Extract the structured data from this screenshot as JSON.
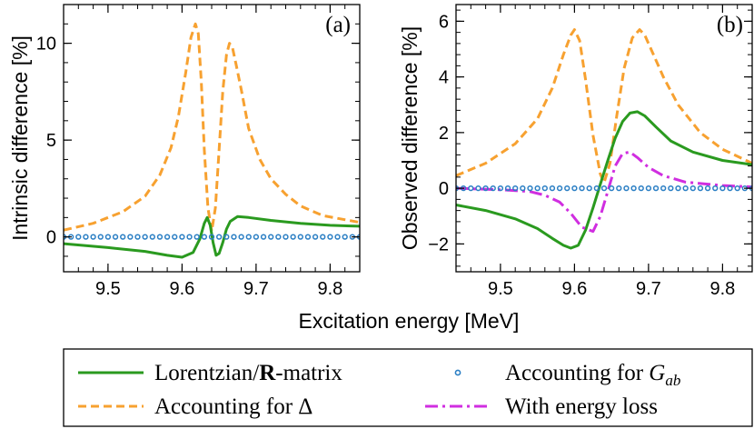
{
  "xlabel": "Excitation energy [MeV]",
  "legend": {
    "entries": [
      {
        "label": "Lorentzian/R-matrix",
        "label_prefix": "Lorentzian/",
        "label_bold": "R",
        "label_suffix": "-matrix",
        "color": "#2a9a1f",
        "style": "solid"
      },
      {
        "label": "Accounting for G_ab",
        "label_prefix": "Accounting for ",
        "label_italic": "G",
        "label_sub": "ab",
        "color": "#2b7fc4",
        "style": "circles"
      },
      {
        "label": "Accounting for Δ",
        "label_prefix": "Accounting for ",
        "label_symbol": "Δ",
        "color": "#f7a130",
        "style": "dashed"
      },
      {
        "label": "With energy loss",
        "label_prefix": "With energy loss",
        "color": "#d02ee0",
        "style": "dashdot"
      }
    ]
  },
  "chart_data": [
    {
      "type": "line",
      "panel": "(a)",
      "ylabel": "Intrinsic difference [%]",
      "xlim": [
        9.44,
        9.84
      ],
      "ylim": [
        -1.8,
        12.0
      ],
      "xticks": [
        "9.5",
        "9.6",
        "9.7",
        "9.8"
      ],
      "xtick_values": [
        9.5,
        9.6,
        9.7,
        9.8
      ],
      "yticks": [
        "0",
        "5",
        "10"
      ],
      "ytick_values": [
        0,
        5,
        10
      ],
      "series": [
        {
          "name": "Accounting for Δ",
          "color": "#f7a130",
          "style": "dashed",
          "x": [
            9.44,
            9.48,
            9.52,
            9.55,
            9.57,
            9.585,
            9.595,
            9.605,
            9.612,
            9.618,
            9.622,
            9.626,
            9.63,
            9.635,
            9.64,
            9.645,
            9.65,
            9.655,
            9.66,
            9.664,
            9.668,
            9.673,
            9.68,
            9.69,
            9.705,
            9.72,
            9.74,
            9.76,
            9.79,
            9.84
          ],
          "y": [
            0.35,
            0.7,
            1.3,
            2.1,
            3.2,
            4.6,
            6.2,
            8.5,
            10.3,
            11.0,
            10.5,
            8.0,
            4.5,
            1.5,
            0.3,
            1.5,
            4.5,
            7.5,
            9.4,
            10.0,
            9.8,
            8.9,
            7.6,
            5.6,
            4.0,
            3.0,
            2.2,
            1.6,
            1.1,
            0.75
          ]
        },
        {
          "name": "Lorentzian/R-matrix",
          "color": "#2a9a1f",
          "style": "solid",
          "x": [
            9.44,
            9.5,
            9.55,
            9.58,
            9.6,
            9.615,
            9.624,
            9.63,
            9.634,
            9.638,
            9.642,
            9.646,
            9.65,
            9.655,
            9.66,
            9.665,
            9.675,
            9.69,
            9.72,
            9.76,
            9.8,
            9.84
          ],
          "y": [
            -0.35,
            -0.55,
            -0.75,
            -0.95,
            -1.05,
            -0.8,
            -0.1,
            0.7,
            1.0,
            0.6,
            -0.3,
            -0.95,
            -0.85,
            -0.3,
            0.4,
            0.8,
            1.05,
            1.0,
            0.85,
            0.7,
            0.6,
            0.55
          ]
        },
        {
          "name": "Accounting for G_ab",
          "color": "#2b7fc4",
          "style": "circles",
          "x_start": 9.44,
          "x_step": 0.01,
          "count": 41,
          "y_const": 0.0
        }
      ]
    },
    {
      "type": "line",
      "panel": "(b)",
      "ylabel": "Observed difference [%]",
      "xlim": [
        9.44,
        9.84
      ],
      "ylim": [
        -3.0,
        6.6
      ],
      "xticks": [
        "9.5",
        "9.6",
        "9.7",
        "9.8"
      ],
      "xtick_values": [
        9.5,
        9.6,
        9.7,
        9.8
      ],
      "yticks": [
        "−2",
        "0",
        "2",
        "4",
        "6"
      ],
      "ytick_values": [
        -2,
        0,
        2,
        4,
        6
      ],
      "series": [
        {
          "name": "Accounting for Δ",
          "color": "#f7a130",
          "style": "dashed",
          "x": [
            9.44,
            9.48,
            9.52,
            9.55,
            9.57,
            9.585,
            9.595,
            9.6,
            9.607,
            9.615,
            9.625,
            9.635,
            9.64,
            9.648,
            9.657,
            9.667,
            9.678,
            9.688,
            9.695,
            9.705,
            9.72,
            9.74,
            9.77,
            9.8,
            9.84
          ],
          "y": [
            0.45,
            0.9,
            1.6,
            2.5,
            3.6,
            4.8,
            5.5,
            5.7,
            5.3,
            3.9,
            1.9,
            0.5,
            0.2,
            0.9,
            2.6,
            4.3,
            5.4,
            5.7,
            5.5,
            4.9,
            4.0,
            3.0,
            2.0,
            1.4,
            0.9
          ]
        },
        {
          "name": "Lorentzian/R-matrix",
          "color": "#2a9a1f",
          "style": "solid",
          "x": [
            9.44,
            9.48,
            9.52,
            9.55,
            9.57,
            9.585,
            9.595,
            9.605,
            9.615,
            9.625,
            9.635,
            9.645,
            9.655,
            9.665,
            9.675,
            9.685,
            9.695,
            9.71,
            9.73,
            9.76,
            9.8,
            9.84
          ],
          "y": [
            -0.6,
            -0.8,
            -1.1,
            -1.45,
            -1.8,
            -2.05,
            -2.15,
            -2.05,
            -1.5,
            -0.7,
            0.15,
            1.0,
            1.8,
            2.4,
            2.7,
            2.75,
            2.6,
            2.2,
            1.7,
            1.3,
            1.0,
            0.85
          ]
        },
        {
          "name": "With energy loss",
          "color": "#d02ee0",
          "style": "dashdot",
          "x": [
            9.44,
            9.5,
            9.54,
            9.56,
            9.58,
            9.595,
            9.61,
            9.625,
            9.635,
            9.645,
            9.655,
            9.665,
            9.675,
            9.685,
            9.7,
            9.72,
            9.75,
            9.8,
            9.84
          ],
          "y": [
            0.0,
            -0.05,
            -0.12,
            -0.25,
            -0.5,
            -0.9,
            -1.4,
            -1.55,
            -1.0,
            -0.1,
            0.8,
            1.25,
            1.3,
            1.1,
            0.75,
            0.45,
            0.22,
            0.1,
            0.05
          ]
        },
        {
          "name": "Accounting for G_ab",
          "color": "#2b7fc4",
          "style": "circles",
          "x_start": 9.44,
          "x_step": 0.01,
          "count": 41,
          "y_const": 0.0
        }
      ]
    }
  ]
}
